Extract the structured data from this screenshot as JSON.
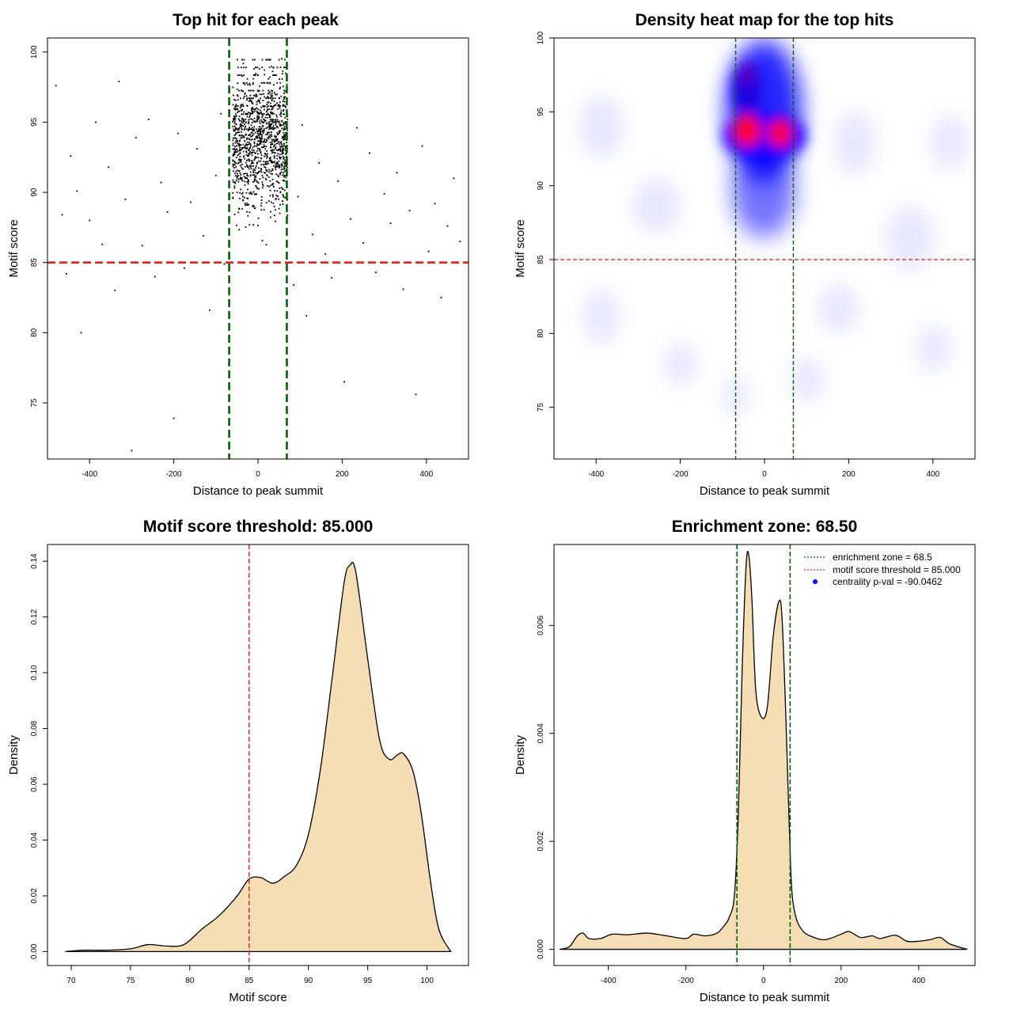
{
  "chart_data": [
    {
      "type": "scatter",
      "title": "Top hit for each peak",
      "xlabel": "Distance to peak summit",
      "ylabel": "Motif score",
      "xlim": [
        -500,
        500
      ],
      "ylim": [
        71,
        101
      ],
      "xticks": [
        -400,
        -200,
        0,
        200,
        400
      ],
      "yticks": [
        75,
        80,
        85,
        90,
        95,
        100
      ],
      "xtick_labels": [
        "-400",
        "-200",
        "0",
        "200",
        "400"
      ],
      "ytick_labels": [
        "75",
        "80",
        "85",
        "90",
        "95",
        "100"
      ],
      "reference_lines": [
        {
          "axis": "y",
          "value": 85,
          "color": "#e02020",
          "style": "dashed"
        },
        {
          "axis": "x",
          "value": -68.5,
          "color": "#006400",
          "style": "dashed"
        },
        {
          "axis": "x",
          "value": 68.5,
          "color": "#006400",
          "style": "dashed"
        }
      ],
      "sample_points": [
        [
          -480,
          97.6
        ],
        [
          -465,
          88.4
        ],
        [
          -455,
          84.2
        ],
        [
          -445,
          92.6
        ],
        [
          -430,
          90.1
        ],
        [
          -420,
          80.0
        ],
        [
          -400,
          88.0
        ],
        [
          -385,
          95.0
        ],
        [
          -370,
          86.3
        ],
        [
          -355,
          91.8
        ],
        [
          -340,
          83.0
        ],
        [
          -330,
          97.9
        ],
        [
          -315,
          89.5
        ],
        [
          -300,
          71.6
        ],
        [
          -290,
          93.9
        ],
        [
          -275,
          86.2
        ],
        [
          -260,
          95.2
        ],
        [
          -245,
          84.0
        ],
        [
          -230,
          90.7
        ],
        [
          -215,
          88.6
        ],
        [
          -200,
          73.9
        ],
        [
          -190,
          94.2
        ],
        [
          -175,
          84.6
        ],
        [
          -160,
          89.3
        ],
        [
          -145,
          93.1
        ],
        [
          -130,
          86.9
        ],
        [
          -115,
          81.6
        ],
        [
          -100,
          91.2
        ],
        [
          -88,
          95.6
        ],
        [
          -80,
          84.9
        ],
        [
          85,
          83.4
        ],
        [
          95,
          89.7
        ],
        [
          105,
          94.8
        ],
        [
          115,
          81.2
        ],
        [
          130,
          87.0
        ],
        [
          145,
          92.1
        ],
        [
          160,
          85.6
        ],
        [
          175,
          83.9
        ],
        [
          190,
          90.8
        ],
        [
          205,
          76.5
        ],
        [
          220,
          88.1
        ],
        [
          235,
          94.6
        ],
        [
          250,
          86.4
        ],
        [
          265,
          92.8
        ],
        [
          280,
          84.3
        ],
        [
          300,
          89.9
        ],
        [
          315,
          87.8
        ],
        [
          330,
          91.4
        ],
        [
          345,
          83.1
        ],
        [
          360,
          88.7
        ],
        [
          375,
          75.6
        ],
        [
          390,
          93.3
        ],
        [
          405,
          85.8
        ],
        [
          420,
          89.2
        ],
        [
          435,
          82.5
        ],
        [
          450,
          87.6
        ],
        [
          465,
          91.0
        ],
        [
          480,
          86.5
        ]
      ]
    },
    {
      "type": "heatmap",
      "title": "Density heat map for the top hits",
      "xlabel": "Distance to peak summit",
      "ylabel": "Motif score",
      "xlim": [
        -500,
        500
      ],
      "ylim": [
        71.5,
        100
      ],
      "xticks": [
        -400,
        -200,
        0,
        200,
        400
      ],
      "yticks": [
        75,
        80,
        85,
        90,
        95,
        100
      ],
      "xtick_labels": [
        "-400",
        "-200",
        "0",
        "200",
        "400"
      ],
      "ytick_labels": [
        "75",
        "80",
        "85",
        "90",
        "95",
        "100"
      ],
      "colormap": [
        "#ffffff",
        "#0000ff",
        "#ff0000"
      ],
      "hotspots": [
        {
          "x": -40,
          "y": 94,
          "level": "high"
        },
        {
          "x": 38,
          "y": 93.5,
          "level": "high"
        },
        {
          "x": -40,
          "y": 98,
          "level": "medium"
        },
        {
          "x": 0,
          "y": 90,
          "level": "medium"
        }
      ],
      "reference_lines": [
        {
          "axis": "y",
          "value": 85,
          "color": "#d04040",
          "style": "dashed"
        },
        {
          "axis": "x",
          "value": -68.5,
          "color": "#006400",
          "style": "dashed"
        },
        {
          "axis": "x",
          "value": 68.5,
          "color": "#006400",
          "style": "dashed"
        }
      ]
    },
    {
      "type": "area",
      "title": "Motif score threshold: 85.000",
      "xlabel": "Motif score",
      "ylabel": "Density",
      "xlim": [
        68,
        103.5
      ],
      "ylim": [
        -0.005,
        0.146
      ],
      "xticks": [
        70,
        75,
        80,
        85,
        90,
        95,
        100
      ],
      "yticks": [
        0.0,
        0.02,
        0.04,
        0.06,
        0.08,
        0.1,
        0.12,
        0.14
      ],
      "xtick_labels": [
        "70",
        "75",
        "80",
        "85",
        "90",
        "95",
        "100"
      ],
      "ytick_labels": [
        "0.00",
        "0.02",
        "0.04",
        "0.06",
        "0.08",
        "0.10",
        "0.12",
        "0.14"
      ],
      "fill_color": "#f5deb3",
      "x": [
        69.5,
        71,
        73,
        75,
        76.5,
        78,
        79.5,
        81,
        82.5,
        84,
        85,
        86,
        87,
        88,
        89,
        90,
        91,
        92,
        93,
        93.5,
        94,
        95,
        96,
        96.8,
        97.5,
        98,
        98.8,
        99.5,
        100.3,
        101,
        102
      ],
      "values": [
        0.0,
        0.0005,
        0.0005,
        0.001,
        0.0025,
        0.002,
        0.0025,
        0.008,
        0.013,
        0.02,
        0.026,
        0.0265,
        0.0245,
        0.027,
        0.031,
        0.042,
        0.065,
        0.098,
        0.132,
        0.1385,
        0.136,
        0.105,
        0.076,
        0.069,
        0.0705,
        0.071,
        0.065,
        0.05,
        0.025,
        0.008,
        0.0
      ],
      "reference_lines": [
        {
          "axis": "x",
          "value": 85,
          "color": "#e02020",
          "style": "dashed"
        }
      ]
    },
    {
      "type": "area",
      "title": "Enrichment zone: 68.50",
      "xlabel": "Distance to peak summit",
      "ylabel": "Density",
      "xlim": [
        -540,
        545
      ],
      "ylim": [
        -0.0003,
        0.0075
      ],
      "xticks": [
        -400,
        -200,
        0,
        200,
        400
      ],
      "yticks": [
        0.0,
        0.002,
        0.004,
        0.006
      ],
      "xtick_labels": [
        "-400",
        "-200",
        "0",
        "200",
        "400"
      ],
      "ytick_labels": [
        "0.000",
        "0.002",
        "0.004",
        "0.006"
      ],
      "fill_color": "#f5deb3",
      "x": [
        -525,
        -500,
        -480,
        -465,
        -450,
        -420,
        -390,
        -350,
        -300,
        -250,
        -200,
        -180,
        -150,
        -120,
        -100,
        -88,
        -75,
        -65,
        -55,
        -45,
        -38,
        -30,
        -20,
        -5,
        10,
        25,
        40,
        48,
        58,
        70,
        80,
        100,
        130,
        160,
        200,
        220,
        250,
        280,
        300,
        340,
        370,
        400,
        430,
        455,
        480,
        525
      ],
      "values": [
        0.0,
        5e-05,
        0.00025,
        0.0003,
        0.0002,
        0.0002,
        0.00028,
        0.00027,
        0.0003,
        0.00025,
        0.0002,
        0.00028,
        0.00025,
        0.0003,
        0.00045,
        0.0006,
        0.001,
        0.0025,
        0.0052,
        0.0071,
        0.0073,
        0.0065,
        0.0048,
        0.0043,
        0.0045,
        0.0058,
        0.00645,
        0.0061,
        0.0042,
        0.0015,
        0.0007,
        0.00035,
        0.00022,
        0.00018,
        0.00028,
        0.00033,
        0.00022,
        0.00025,
        0.0002,
        0.00026,
        0.00015,
        0.00015,
        0.00018,
        0.00022,
        0.0001,
        0.0
      ],
      "reference_lines": [
        {
          "axis": "x",
          "value": -68.5,
          "color": "#006400",
          "style": "dashed"
        },
        {
          "axis": "x",
          "value": 68.5,
          "color": "#006400",
          "style": "dashed"
        }
      ],
      "legend": {
        "placement": "top-right",
        "entries": [
          {
            "label": "enrichment zone = 68.5",
            "color": "#006400",
            "marker": "dotted-line"
          },
          {
            "label": "motif score threshold = 85.000",
            "color": "#e02020",
            "marker": "dotted-line"
          },
          {
            "label": "centrality p-val = -90.0462",
            "color": "#0000ff",
            "marker": "dot"
          }
        ]
      }
    }
  ]
}
